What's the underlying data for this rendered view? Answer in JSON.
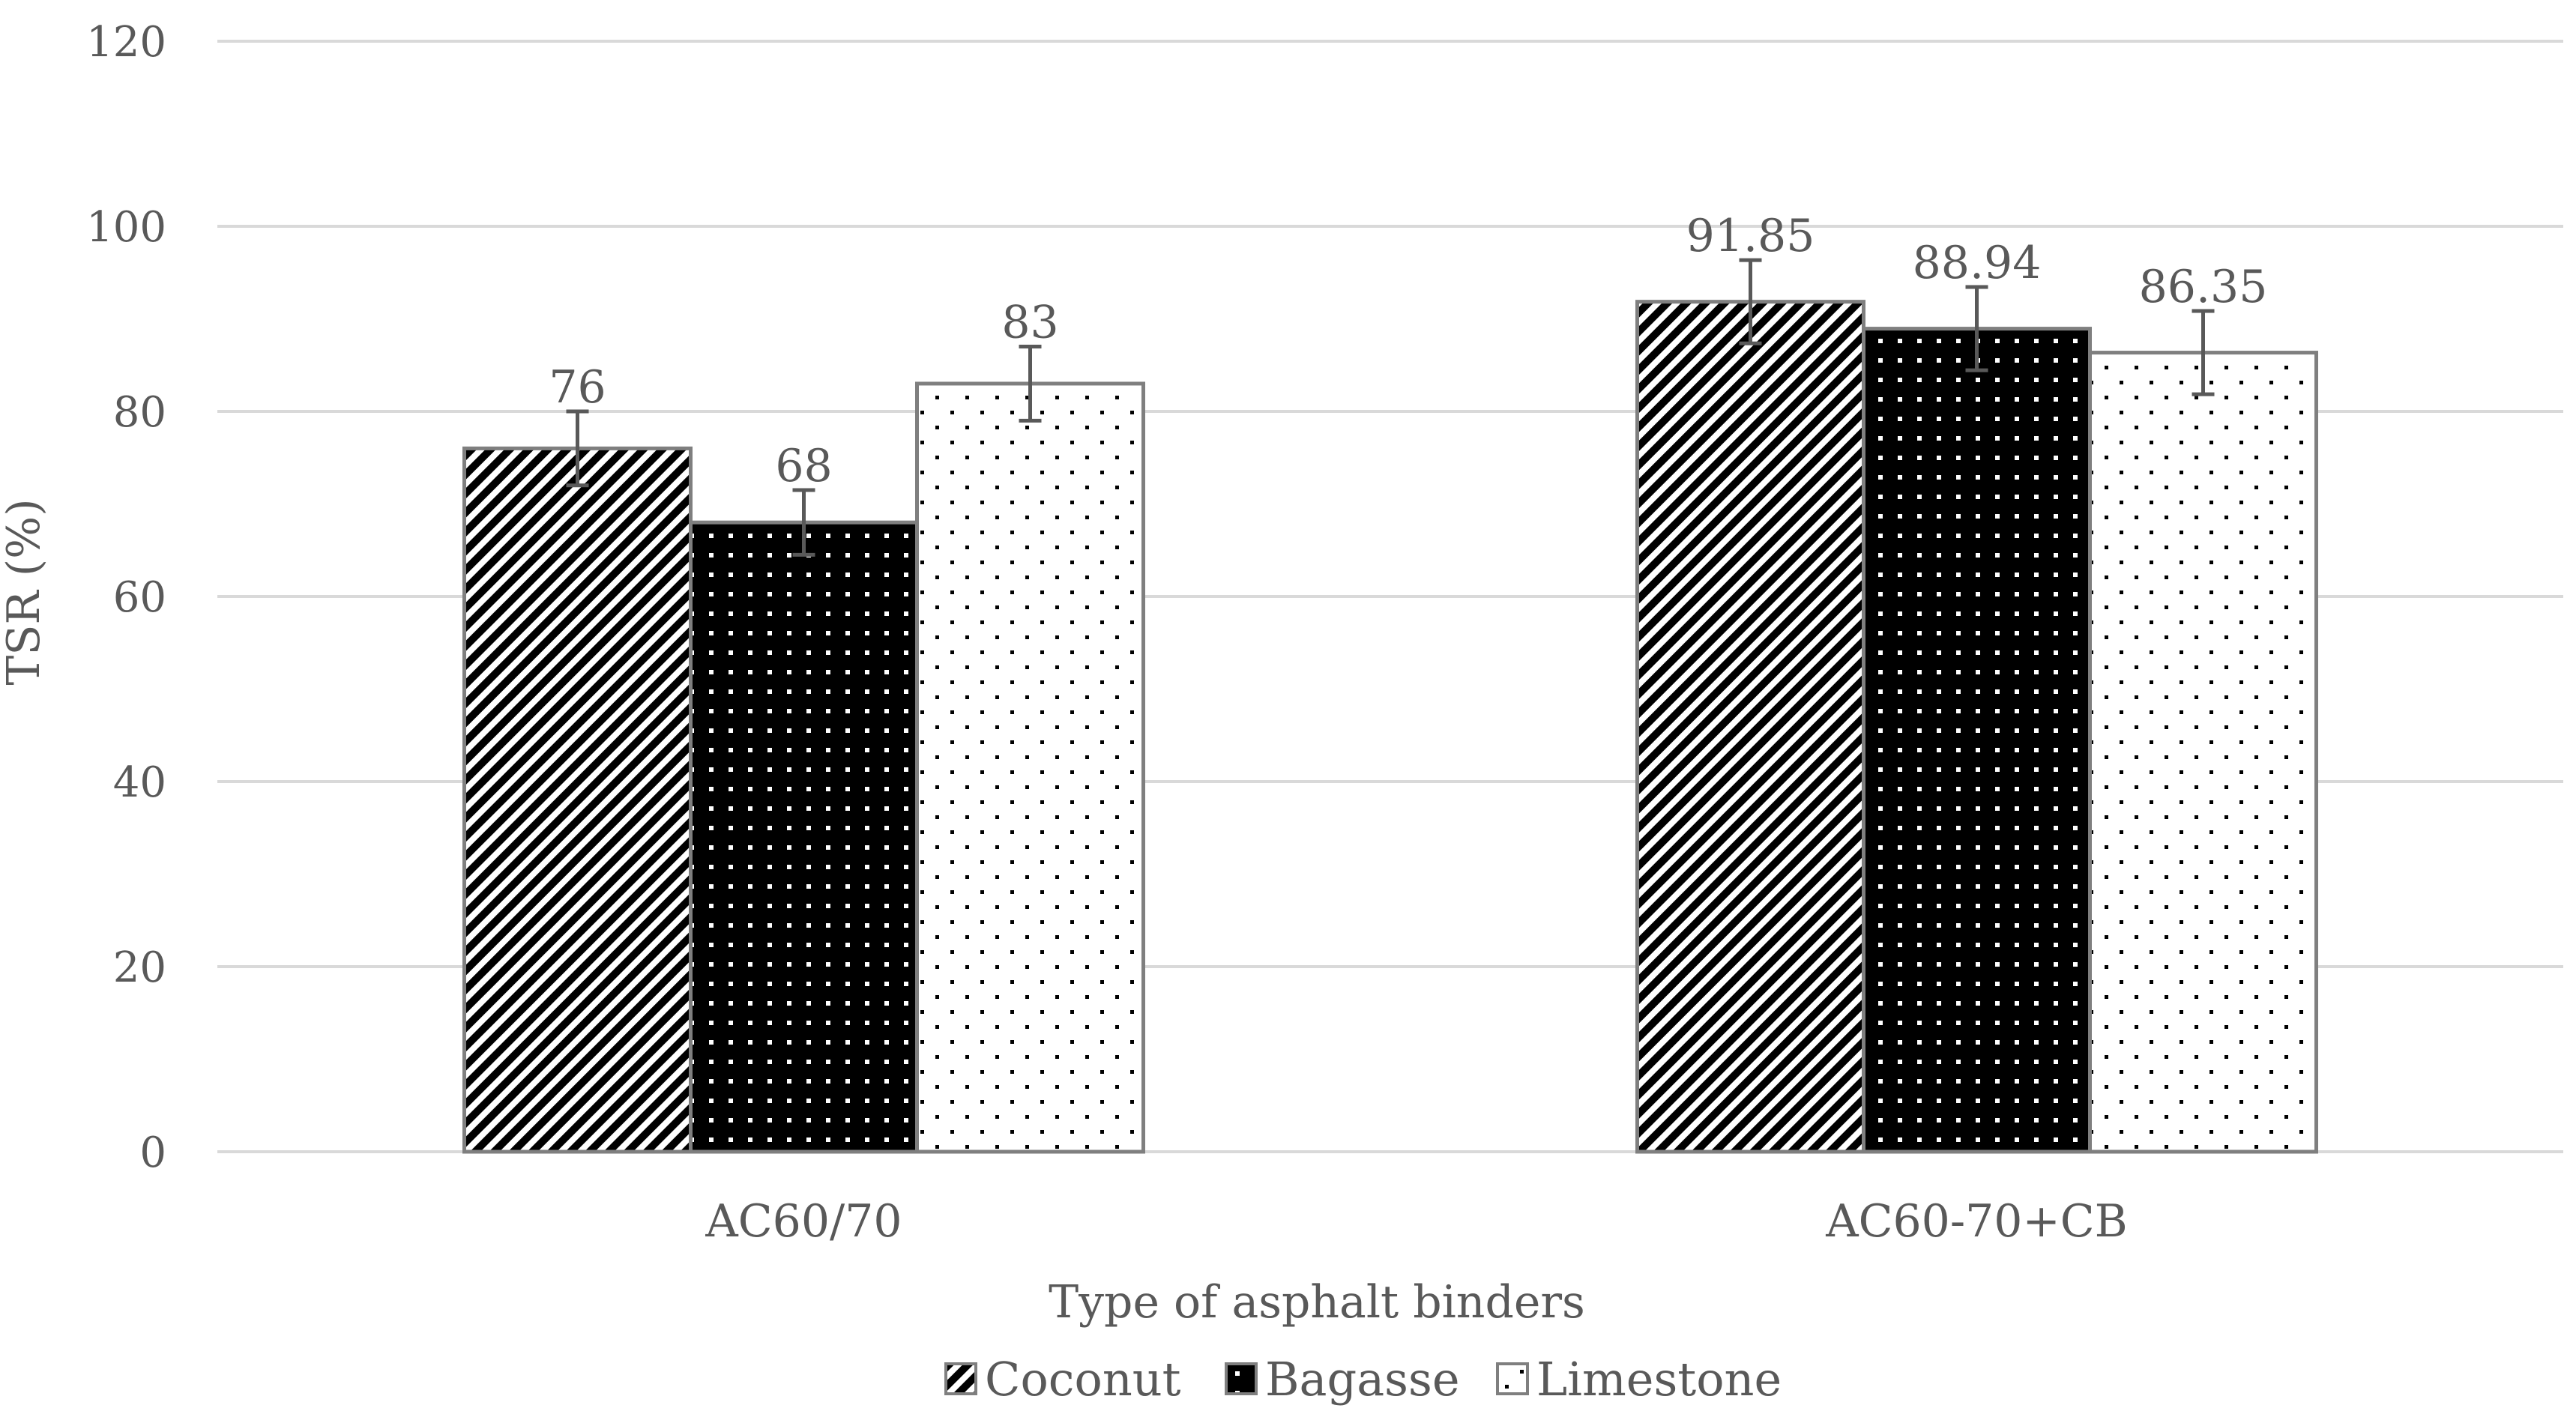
{
  "chart_data": {
    "type": "bar",
    "title": "",
    "xlabel": "Type of asphalt binders",
    "ylabel": "TSR (%)",
    "ylim": [
      0,
      120
    ],
    "yticks": [
      0,
      20,
      40,
      60,
      80,
      100,
      120
    ],
    "grid": true,
    "legend_position": "bottom-center",
    "categories": [
      "AC60/70",
      "AC60-70+CB"
    ],
    "series": [
      {
        "name": "Coconut",
        "pattern": "diagonal-stripes",
        "values": [
          76,
          91.85
        ],
        "labels": [
          "76",
          "91.85"
        ],
        "error": [
          4,
          4.5
        ]
      },
      {
        "name": "Bagasse",
        "pattern": "black-dots",
        "values": [
          68,
          88.94
        ],
        "labels": [
          "68",
          "88.94"
        ],
        "error": [
          3.5,
          4.5
        ]
      },
      {
        "name": "Limestone",
        "pattern": "white-dots",
        "values": [
          83,
          86.35
        ],
        "labels": [
          "83",
          "86.35"
        ],
        "error": [
          4,
          4.5
        ]
      }
    ],
    "colors": {
      "grid": "#d9d9d9",
      "bar_border": "#7f7f7f",
      "text": "#595959",
      "error_bar": "#595959"
    }
  }
}
